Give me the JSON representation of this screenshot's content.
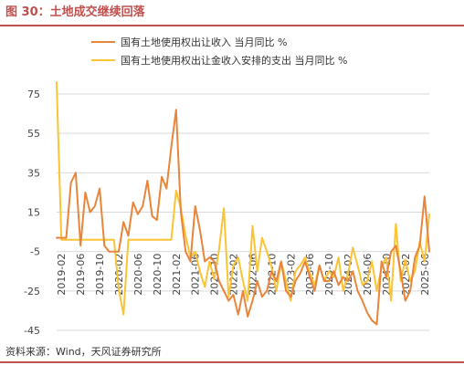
{
  "figure": {
    "title": "图 30：土地成交继续回落",
    "source": "资料来源：Wind，天风证券研究所"
  },
  "colors": {
    "series1": "#e8853b",
    "series2": "#fbc434",
    "accent": "#c0504d",
    "grid": "#d9d9d9"
  },
  "chart_data": {
    "type": "line",
    "title": "",
    "xlabel": "",
    "ylabel": "",
    "ylim": [
      -45,
      75
    ],
    "yticks": [
      75,
      55,
      35,
      15,
      -5,
      -25,
      -45
    ],
    "xtick_labels": [
      "2019-02",
      "2019-06",
      "2019-10",
      "2020-02",
      "2020-06",
      "2020-10",
      "2021-02",
      "2021-06",
      "2021-10",
      "2022-02",
      "2022-06",
      "2022-10",
      "2023-02",
      "2023-06",
      "2023-10",
      "2024-02",
      "2024-06",
      "2024-10",
      "2025-02",
      "2025-06"
    ],
    "grid": "horizontal",
    "legend": "top",
    "x": [
      "2019-01",
      "2019-02",
      "2019-03",
      "2019-04",
      "2019-05",
      "2019-06",
      "2019-07",
      "2019-08",
      "2019-09",
      "2019-10",
      "2019-11",
      "2019-12",
      "2020-01",
      "2020-02",
      "2020-03",
      "2020-04",
      "2020-05",
      "2020-06",
      "2020-07",
      "2020-08",
      "2020-09",
      "2020-10",
      "2020-11",
      "2020-12",
      "2021-01",
      "2021-02",
      "2021-03",
      "2021-04",
      "2021-05",
      "2021-06",
      "2021-07",
      "2021-08",
      "2021-09",
      "2021-10",
      "2021-11",
      "2021-12",
      "2022-01",
      "2022-02",
      "2022-03",
      "2022-04",
      "2022-05",
      "2022-06",
      "2022-07",
      "2022-08",
      "2022-09",
      "2022-10",
      "2022-11",
      "2022-12",
      "2023-01",
      "2023-02",
      "2023-03",
      "2023-04",
      "2023-05",
      "2023-06",
      "2023-07",
      "2023-08",
      "2023-09",
      "2023-10",
      "2023-11",
      "2023-12",
      "2024-01",
      "2024-02",
      "2024-03",
      "2024-04",
      "2024-05",
      "2024-06",
      "2024-07",
      "2024-08",
      "2024-09",
      "2024-10",
      "2024-11",
      "2024-12",
      "2025-01",
      "2025-02",
      "2025-03",
      "2025-04",
      "2025-05",
      "2025-06",
      "2025-07"
    ],
    "series": [
      {
        "name": "国有土地使用权出让收入 当月同比 %",
        "values": [
          2,
          2,
          2,
          30,
          35,
          -2,
          25,
          15,
          18,
          27,
          -2,
          -5,
          -5,
          -5,
          10,
          3,
          20,
          14,
          18,
          31,
          13,
          11,
          33,
          27,
          48,
          67,
          15,
          -5,
          -10,
          18,
          6,
          -10,
          -8,
          -10,
          -20,
          -25,
          -30,
          -27,
          -37,
          -25,
          -38,
          -30,
          -20,
          -28,
          -25,
          -15,
          -20,
          -10,
          -25,
          -28,
          -20,
          -16,
          -10,
          -18,
          -25,
          -12,
          -20,
          -20,
          -15,
          -22,
          -18,
          -20,
          -15,
          -25,
          -30,
          -36,
          -40,
          -42,
          -10,
          -18,
          -5,
          -2,
          -15,
          -30,
          -25,
          -8,
          -2,
          23,
          -5
        ]
      },
      {
        "name": "国有土地使用权出让金收入安排的支出 当月同比 %",
        "values": [
          81,
          1,
          1,
          1,
          1,
          1,
          1,
          1,
          1,
          1,
          1,
          1,
          1,
          -24,
          -37,
          1,
          1,
          1,
          1,
          1,
          1,
          1,
          1,
          1,
          1,
          26,
          17,
          3,
          -8,
          -5,
          -15,
          -23,
          -10,
          -19,
          -4,
          17,
          -28,
          -12,
          -8,
          -20,
          -30,
          8,
          -15,
          2,
          -5,
          -13,
          -25,
          -10,
          -20,
          -30,
          -15,
          -12,
          -8,
          -16,
          -22,
          -12,
          -20,
          -15,
          -18,
          -8,
          -25,
          -16,
          -3,
          -12,
          -22,
          -20,
          -10,
          -25,
          -13,
          -8,
          -30,
          9,
          -20,
          -9,
          -20,
          -15,
          0,
          -10,
          14
        ]
      }
    ]
  }
}
